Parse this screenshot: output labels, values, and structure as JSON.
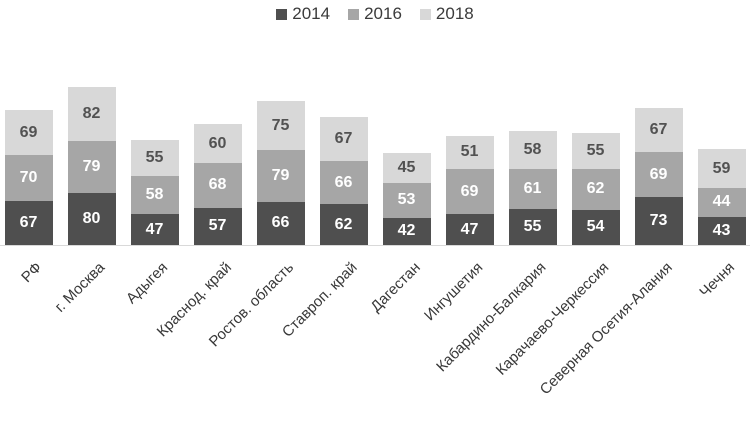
{
  "chart_data": {
    "type": "bar",
    "stacked": true,
    "title": "",
    "xlabel": "",
    "ylabel": "",
    "grid": false,
    "value_labels": true,
    "legend_position": "top",
    "axis_line_color": "#d9d9d9",
    "ylim": [
      0,
      250
    ],
    "categories": [
      "РФ",
      "г. Москва",
      "Адыгея",
      "Краснод. край",
      "Ростов. область",
      "Ставроп. край",
      "Дагестан",
      "Ингушетия",
      "Кабардино-Балкария",
      "Карачаево-Черкессия",
      "Северная Осетия-Алания",
      "Чечня"
    ],
    "series": [
      {
        "name": "2014",
        "color": "#4f4f4f",
        "label_color": "#ffffff",
        "values": [
          67,
          80,
          47,
          57,
          66,
          62,
          42,
          47,
          55,
          54,
          73,
          43
        ]
      },
      {
        "name": "2016",
        "color": "#a6a6a6",
        "label_color": "#ffffff",
        "values": [
          70,
          79,
          58,
          68,
          79,
          66,
          53,
          69,
          61,
          62,
          69,
          44
        ]
      },
      {
        "name": "2018",
        "color": "#d8d8d8",
        "label_color": "#525252",
        "values": [
          69,
          82,
          55,
          60,
          75,
          67,
          45,
          51,
          58,
          55,
          67,
          59
        ]
      }
    ]
  }
}
